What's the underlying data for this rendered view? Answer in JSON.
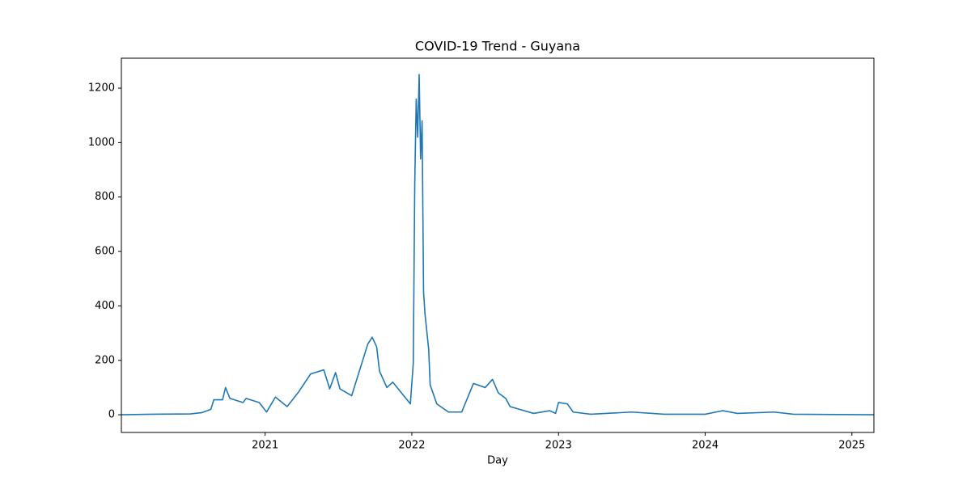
{
  "chart_data": {
    "type": "line",
    "title": "COVID-19 Trend - Guyana",
    "x_label": "Day",
    "x": [
      2020.02,
      2020.23,
      2020.49,
      2020.57,
      2020.63,
      2020.65,
      2020.71,
      2020.73,
      2020.76,
      2020.85,
      2020.87,
      2020.96,
      2021.01,
      2021.07,
      2021.15,
      2021.23,
      2021.31,
      2021.4,
      2021.44,
      2021.48,
      2021.51,
      2021.59,
      2021.7,
      2021.73,
      2021.76,
      2021.78,
      2021.83,
      2021.87,
      2021.99,
      2022.01,
      2022.02,
      2022.03,
      2022.04,
      2022.05,
      2022.06,
      2022.07,
      2022.08,
      2022.09,
      2022.115,
      2022.125,
      2022.17,
      2022.25,
      2022.34,
      2022.42,
      2022.5,
      2022.55,
      2022.59,
      2022.64,
      2022.67,
      2022.83,
      2022.94,
      2022.98,
      2023.0,
      2023.06,
      2023.1,
      2023.22,
      2023.5,
      2023.72,
      2024.0,
      2024.12,
      2024.22,
      2024.47,
      2024.6,
      2025.15
    ],
    "series": [
      {
        "name": "Guyana",
        "color": "#1f77b4",
        "values": [
          0,
          2,
          3,
          8,
          20,
          55,
          55,
          100,
          60,
          45,
          60,
          45,
          10,
          65,
          30,
          85,
          150,
          165,
          95,
          155,
          95,
          70,
          260,
          285,
          250,
          160,
          100,
          120,
          40,
          190,
          850,
          1160,
          1020,
          1250,
          940,
          1080,
          450,
          370,
          240,
          110,
          40,
          10,
          10,
          115,
          100,
          130,
          80,
          60,
          30,
          5,
          15,
          5,
          45,
          40,
          10,
          2,
          10,
          2,
          2,
          15,
          5,
          10,
          2,
          0
        ]
      }
    ],
    "xlim": [
      2020.02,
      2025.15
    ],
    "xticks": [
      2021,
      2022,
      2023,
      2024,
      2025
    ],
    "ylim": [
      -65,
      1310
    ],
    "yticks": [
      0,
      200,
      400,
      600,
      800,
      1000,
      1200
    ],
    "grid": false
  }
}
